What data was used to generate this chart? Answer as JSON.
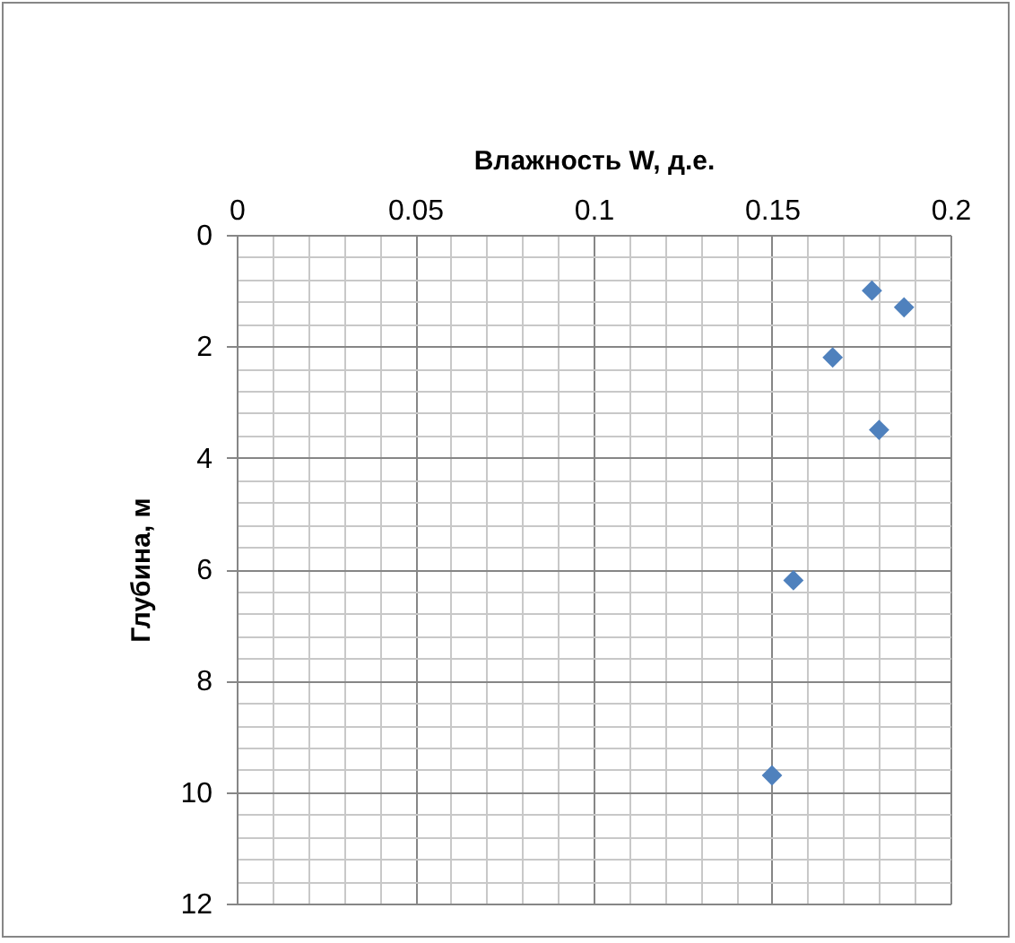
{
  "chart_data": {
    "type": "scatter",
    "xlabel": "Влажность W, д.е.",
    "ylabel": "Глубина, м",
    "x": [
      0.178,
      0.187,
      0.167,
      0.18,
      0.156,
      0.15
    ],
    "series": [
      {
        "color": "#4f81bd",
        "values": [
          1.0,
          1.3,
          2.2,
          3.5,
          6.2,
          9.7
        ]
      }
    ],
    "xlim": [
      0,
      0.2
    ],
    "xticks": [
      0,
      0.05,
      0.1,
      0.15,
      0.2
    ],
    "ylim": [
      12,
      0
    ],
    "yticks": [
      0,
      2,
      4,
      6,
      8,
      10,
      12
    ],
    "grid": true,
    "marker": "diamond",
    "legend": false
  }
}
